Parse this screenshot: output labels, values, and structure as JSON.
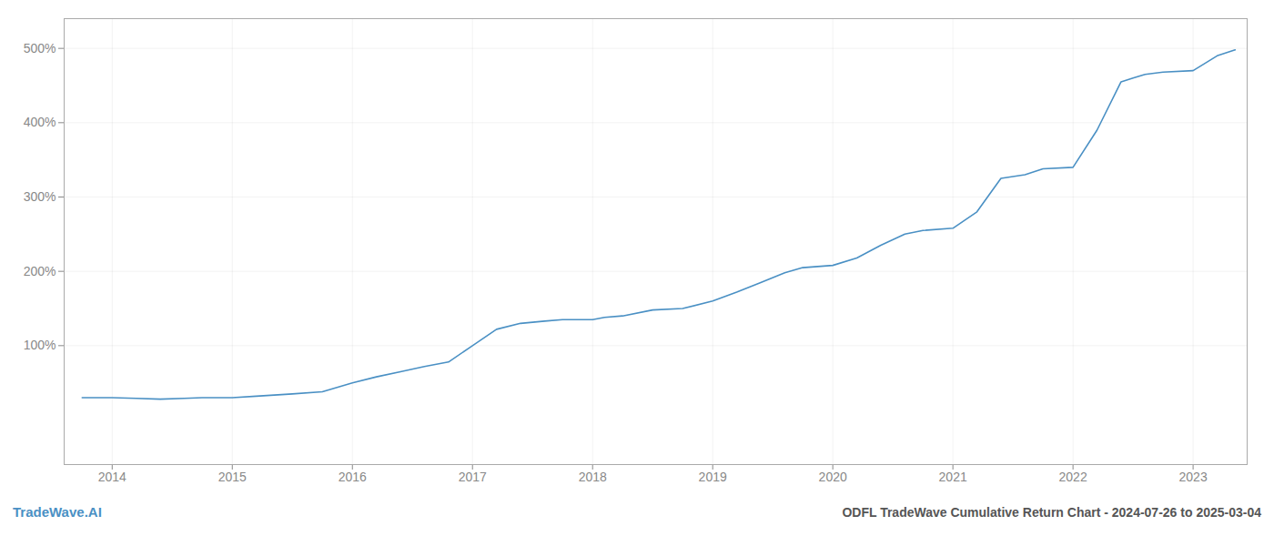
{
  "chart_data": {
    "type": "line",
    "title": "ODFL TradeWave Cumulative Return Chart - 2024-07-26 to 2025-03-04",
    "annotations": [
      {
        "text": "TradeWave.AI",
        "color": "#4a90c4"
      }
    ],
    "x": [
      2013.75,
      2014.0,
      2014.2,
      2014.4,
      2014.6,
      2014.75,
      2015.0,
      2015.2,
      2015.5,
      2015.75,
      2016.0,
      2016.2,
      2016.4,
      2016.6,
      2016.8,
      2017.0,
      2017.2,
      2017.4,
      2017.6,
      2017.75,
      2018.0,
      2018.1,
      2018.25,
      2018.5,
      2018.75,
      2019.0,
      2019.2,
      2019.4,
      2019.6,
      2019.75,
      2020.0,
      2020.2,
      2020.4,
      2020.6,
      2020.75,
      2021.0,
      2021.2,
      2021.4,
      2021.6,
      2021.75,
      2022.0,
      2022.2,
      2022.4,
      2022.5,
      2022.6,
      2022.75,
      2023.0,
      2023.2,
      2023.35
    ],
    "values": [
      30,
      30,
      29,
      28,
      29,
      30,
      30,
      32,
      35,
      38,
      50,
      58,
      65,
      72,
      78,
      100,
      122,
      130,
      133,
      135,
      135,
      138,
      140,
      148,
      150,
      160,
      172,
      185,
      198,
      205,
      208,
      218,
      235,
      250,
      255,
      258,
      280,
      325,
      330,
      338,
      340,
      390,
      455,
      460,
      465,
      468,
      470,
      490,
      498
    ],
    "color": "#4a90c4",
    "xlim": [
      2013.6,
      2023.45
    ],
    "ylim": [
      -60,
      540
    ],
    "xticks": [
      2014,
      2015,
      2016,
      2017,
      2018,
      2019,
      2020,
      2021,
      2022,
      2023
    ],
    "yticks": [
      {
        "value": 100,
        "label": "100%"
      },
      {
        "value": 200,
        "label": "200%"
      },
      {
        "value": 300,
        "label": "300%"
      },
      {
        "value": 400,
        "label": "400%"
      },
      {
        "value": 500,
        "label": "500%"
      }
    ],
    "grid": true
  }
}
